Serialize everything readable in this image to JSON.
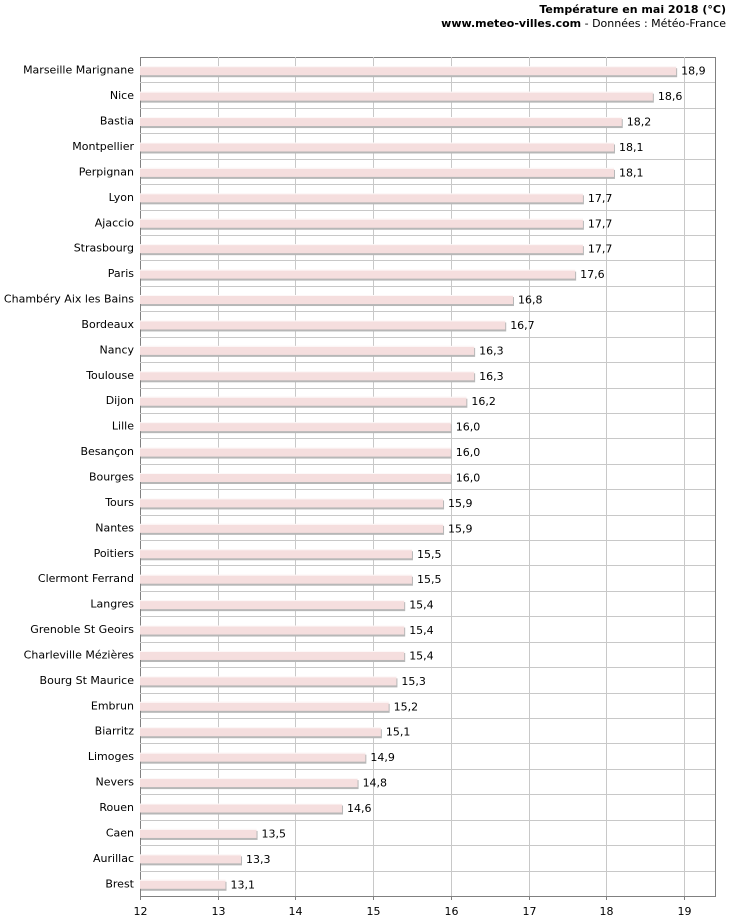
{
  "chart_data": {
    "type": "bar",
    "orientation": "horizontal",
    "title": "Température en mai 2018 (°C)",
    "source_site": "www.meteo-villes.com",
    "source_rest": " - Données : Météo-France",
    "xlim": [
      12,
      19.4
    ],
    "xticks": [
      "12",
      "13",
      "14",
      "15",
      "16",
      "17",
      "18",
      "19"
    ],
    "grid": true,
    "categories": [
      "Marseille Marignane",
      "Nice",
      "Bastia",
      "Montpellier",
      "Perpignan",
      "Lyon",
      "Ajaccio",
      "Strasbourg",
      "Paris",
      "Chambéry Aix les Bains",
      "Bordeaux",
      "Nancy",
      "Toulouse",
      "Dijon",
      "Lille",
      "Besançon",
      "Bourges",
      "Tours",
      "Nantes",
      "Poitiers",
      "Clermont Ferrand",
      "Langres",
      "Grenoble St Geoirs",
      "Charleville Mézières",
      "Bourg St Maurice",
      "Embrun",
      "Biarritz",
      "Limoges",
      "Nevers",
      "Rouen",
      "Caen",
      "Aurillac",
      "Brest"
    ],
    "values": [
      18.9,
      18.6,
      18.2,
      18.1,
      18.1,
      17.7,
      17.7,
      17.7,
      17.6,
      16.8,
      16.7,
      16.3,
      16.3,
      16.2,
      16.0,
      16.0,
      16.0,
      15.9,
      15.9,
      15.5,
      15.5,
      15.4,
      15.4,
      15.4,
      15.3,
      15.2,
      15.1,
      14.9,
      14.8,
      14.6,
      13.5,
      13.3,
      13.1
    ],
    "value_labels": [
      "18,9",
      "18,6",
      "18,2",
      "18,1",
      "18,1",
      "17,7",
      "17,7",
      "17,7",
      "17,6",
      "16,8",
      "16,7",
      "16,3",
      "16,3",
      "16,2",
      "16,0",
      "16,0",
      "16,0",
      "15,9",
      "15,9",
      "15,5",
      "15,5",
      "15,4",
      "15,4",
      "15,4",
      "15,3",
      "15,2",
      "15,1",
      "14,9",
      "14,8",
      "14,6",
      "13,5",
      "13,3",
      "13,1"
    ],
    "colors": {
      "bar_fill": "#f5dede",
      "bar_shadow": "#b7b7b7",
      "bar_highlight": "#ffffff",
      "grid": "#c8c8c8",
      "axis": "#808080",
      "text": "#000000"
    }
  }
}
